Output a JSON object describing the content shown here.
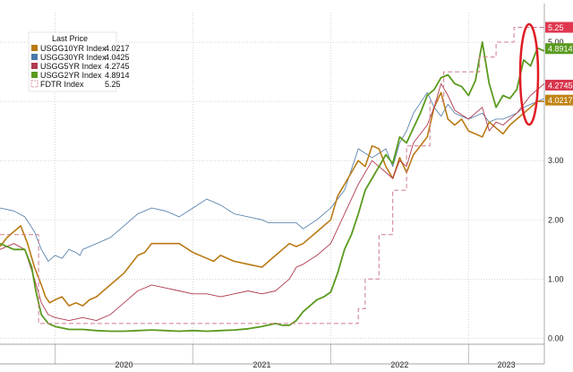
{
  "chart_data": {
    "type": "line",
    "legend": {
      "title": "Last Price",
      "placement": "top-left",
      "entries": [
        {
          "label": "USGG10YR Index",
          "value": "4.0217",
          "color": "#b97a14"
        },
        {
          "label": "USGG30YR Index",
          "value": "4.0425",
          "color": "#4a78a8"
        },
        {
          "label": "USGG5YR Index",
          "value": "4.2745",
          "color": "#b03a4e"
        },
        {
          "label": "USGG2YR Index",
          "value": "4.8914",
          "color": "#5a9a1e"
        },
        {
          "label": "FDTR Index",
          "value": "5.25",
          "color": "#d07a8c"
        }
      ]
    },
    "x_ticks": [
      "2020",
      "2021",
      "2022",
      "2023"
    ],
    "y_ticks": [
      "0.00",
      "1.00",
      "2.00",
      "3.00",
      "4.00",
      "5.00"
    ],
    "ylim": [
      -0.1,
      5.5
    ],
    "xlim": [
      2019.6,
      2023.55
    ],
    "grid": true,
    "last_value_tags": [
      {
        "text": "5.25",
        "value": 5.25,
        "color": "#e0364f"
      },
      {
        "text": "4.8914",
        "value": 4.8914,
        "color": "#5a9a1e"
      },
      {
        "text": "4.2745",
        "value": 4.2745,
        "color": "#d8364f"
      },
      {
        "text": "4.0217",
        "value": 4.0217,
        "color": "#c08416"
      }
    ],
    "series": [
      {
        "name": "USGG30YR Index",
        "color": "#4a78a8",
        "width": 0.8,
        "x": [
          2019.6,
          2019.7,
          2019.78,
          2019.85,
          2019.9,
          2019.95,
          2020.0,
          2020.05,
          2020.1,
          2020.15,
          2020.18,
          2020.2,
          2020.25,
          2020.3,
          2020.4,
          2020.5,
          2020.55,
          2020.6,
          2020.7,
          2020.8,
          2020.9,
          2021.0,
          2021.1,
          2021.15,
          2021.2,
          2021.3,
          2021.4,
          2021.5,
          2021.55,
          2021.6,
          2021.7,
          2021.75,
          2021.8,
          2021.9,
          2022.0,
          2022.1,
          2022.2,
          2022.3,
          2022.4,
          2022.45,
          2022.5,
          2022.55,
          2022.6,
          2022.7,
          2022.75,
          2022.8,
          2022.85,
          2022.9,
          2023.0,
          2023.1,
          2023.15,
          2023.2,
          2023.25,
          2023.3,
          2023.35,
          2023.4,
          2023.45,
          2023.5,
          2023.55
        ],
        "y": [
          2.2,
          2.15,
          2.05,
          1.8,
          1.5,
          1.3,
          1.4,
          1.35,
          1.5,
          1.45,
          1.4,
          1.5,
          1.55,
          1.6,
          1.7,
          1.9,
          2.0,
          2.1,
          2.2,
          2.15,
          2.05,
          2.2,
          2.35,
          2.3,
          2.25,
          2.1,
          2.05,
          2.0,
          1.95,
          1.95,
          1.95,
          1.95,
          1.85,
          2.0,
          2.2,
          2.5,
          3.2,
          3.05,
          3.2,
          2.9,
          3.3,
          3.5,
          3.8,
          4.15,
          3.9,
          3.75,
          3.95,
          3.8,
          3.7,
          3.8,
          3.65,
          3.7,
          3.7,
          3.75,
          3.8,
          3.9,
          3.95,
          4.0,
          4.05
        ]
      },
      {
        "name": "USGG10YR Index",
        "color": "#b97a14",
        "width": 1.6,
        "x": [
          2019.6,
          2019.65,
          2019.7,
          2019.75,
          2019.8,
          2019.85,
          2019.9,
          2019.93,
          2019.96,
          2020.0,
          2020.05,
          2020.1,
          2020.15,
          2020.2,
          2020.25,
          2020.3,
          2020.4,
          2020.5,
          2020.55,
          2020.6,
          2020.65,
          2020.7,
          2020.8,
          2020.9,
          2021.0,
          2021.1,
          2021.15,
          2021.2,
          2021.3,
          2021.4,
          2021.5,
          2021.55,
          2021.6,
          2021.7,
          2021.75,
          2021.8,
          2021.9,
          2022.0,
          2022.05,
          2022.1,
          2022.15,
          2022.2,
          2022.25,
          2022.3,
          2022.35,
          2022.4,
          2022.45,
          2022.5,
          2022.55,
          2022.6,
          2022.7,
          2022.75,
          2022.8,
          2022.85,
          2022.9,
          2022.95,
          2023.0,
          2023.05,
          2023.1,
          2023.15,
          2023.2,
          2023.25,
          2023.3,
          2023.35,
          2023.4,
          2023.45,
          2023.5,
          2023.55
        ],
        "y": [
          1.55,
          1.7,
          1.8,
          1.9,
          1.6,
          1.2,
          0.9,
          0.7,
          0.6,
          0.65,
          0.7,
          0.55,
          0.6,
          0.55,
          0.65,
          0.7,
          0.9,
          1.1,
          1.25,
          1.4,
          1.45,
          1.6,
          1.6,
          1.6,
          1.45,
          1.35,
          1.3,
          1.4,
          1.3,
          1.25,
          1.2,
          1.3,
          1.4,
          1.6,
          1.55,
          1.6,
          1.8,
          2.0,
          2.4,
          2.6,
          2.8,
          3.0,
          2.9,
          3.25,
          3.2,
          2.9,
          2.7,
          3.05,
          2.8,
          3.1,
          3.4,
          3.9,
          4.15,
          3.7,
          3.6,
          3.7,
          3.5,
          3.45,
          3.4,
          3.65,
          3.55,
          3.45,
          3.6,
          3.7,
          3.8,
          3.9,
          4.0,
          4.0
        ]
      },
      {
        "name": "USGG5YR Index",
        "color": "#b03a4e",
        "width": 0.9,
        "x": [
          2019.6,
          2019.7,
          2019.78,
          2019.85,
          2019.9,
          2019.95,
          2020.0,
          2020.1,
          2020.2,
          2020.3,
          2020.4,
          2020.5,
          2020.6,
          2020.7,
          2020.8,
          2020.9,
          2021.0,
          2021.1,
          2021.2,
          2021.3,
          2021.4,
          2021.5,
          2021.6,
          2021.7,
          2021.75,
          2021.8,
          2021.9,
          2022.0,
          2022.1,
          2022.2,
          2022.3,
          2022.4,
          2022.45,
          2022.5,
          2022.55,
          2022.6,
          2022.7,
          2022.75,
          2022.8,
          2022.85,
          2022.9,
          2023.0,
          2023.1,
          2023.15,
          2023.2,
          2023.25,
          2023.3,
          2023.35,
          2023.4,
          2023.45,
          2023.5,
          2023.55
        ],
        "y": [
          1.5,
          1.6,
          1.5,
          1.0,
          0.6,
          0.4,
          0.35,
          0.3,
          0.35,
          0.3,
          0.4,
          0.6,
          0.8,
          0.9,
          0.85,
          0.8,
          0.75,
          0.75,
          0.7,
          0.75,
          0.8,
          0.75,
          0.8,
          1.0,
          1.2,
          1.25,
          1.4,
          1.6,
          2.1,
          2.6,
          3.0,
          2.8,
          2.7,
          3.0,
          2.9,
          3.3,
          3.6,
          3.9,
          4.3,
          4.1,
          3.85,
          3.7,
          3.9,
          3.5,
          3.65,
          3.6,
          3.7,
          3.8,
          3.95,
          4.1,
          4.2,
          4.3
        ]
      },
      {
        "name": "USGG2YR Index",
        "color": "#5a9a1e",
        "width": 1.8,
        "x": [
          2019.6,
          2019.7,
          2019.78,
          2019.83,
          2019.86,
          2019.9,
          2019.95,
          2020.0,
          2020.1,
          2020.2,
          2020.3,
          2020.4,
          2020.5,
          2020.6,
          2020.7,
          2020.8,
          2020.9,
          2021.0,
          2021.1,
          2021.2,
          2021.3,
          2021.4,
          2021.5,
          2021.6,
          2021.65,
          2021.7,
          2021.75,
          2021.8,
          2021.85,
          2021.9,
          2021.95,
          2022.0,
          2022.05,
          2022.1,
          2022.15,
          2022.2,
          2022.25,
          2022.3,
          2022.35,
          2022.4,
          2022.45,
          2022.5,
          2022.55,
          2022.6,
          2022.65,
          2022.7,
          2022.75,
          2022.8,
          2022.85,
          2022.9,
          2022.95,
          2023.0,
          2023.05,
          2023.1,
          2023.15,
          2023.2,
          2023.25,
          2023.3,
          2023.35,
          2023.4,
          2023.45,
          2023.5,
          2023.55
        ],
        "y": [
          1.6,
          1.5,
          1.5,
          1.2,
          0.8,
          0.4,
          0.25,
          0.2,
          0.15,
          0.15,
          0.13,
          0.12,
          0.12,
          0.13,
          0.14,
          0.13,
          0.12,
          0.13,
          0.12,
          0.13,
          0.14,
          0.16,
          0.2,
          0.25,
          0.22,
          0.22,
          0.3,
          0.45,
          0.55,
          0.65,
          0.7,
          0.78,
          1.1,
          1.5,
          1.75,
          2.1,
          2.5,
          2.7,
          2.9,
          3.1,
          2.95,
          3.4,
          3.3,
          3.55,
          3.8,
          4.1,
          4.2,
          4.4,
          4.45,
          4.3,
          4.25,
          4.1,
          4.35,
          5.0,
          4.3,
          3.9,
          4.1,
          4.05,
          4.2,
          4.7,
          4.6,
          4.9,
          4.85
        ]
      },
      {
        "name": "FDTR Index",
        "color": "#d07a8c",
        "width": 1.0,
        "dash": "5,3",
        "step": true,
        "x": [
          2019.6,
          2019.85,
          2019.88,
          2020.0,
          2020.2,
          2020.4,
          2020.6,
          2020.8,
          2021.0,
          2021.2,
          2021.4,
          2021.6,
          2021.8,
          2022.0,
          2022.2,
          2022.25,
          2022.35,
          2022.45,
          2022.55,
          2022.62,
          2022.72,
          2022.82,
          2022.92,
          2023.08,
          2023.2,
          2023.33,
          2023.55
        ],
        "y": [
          1.75,
          1.75,
          0.25,
          0.25,
          0.25,
          0.25,
          0.25,
          0.25,
          0.25,
          0.25,
          0.25,
          0.25,
          0.25,
          0.25,
          0.5,
          1.0,
          1.75,
          2.5,
          3.25,
          3.25,
          4.0,
          4.5,
          4.5,
          4.75,
          5.0,
          5.25,
          5.25
        ]
      }
    ]
  }
}
